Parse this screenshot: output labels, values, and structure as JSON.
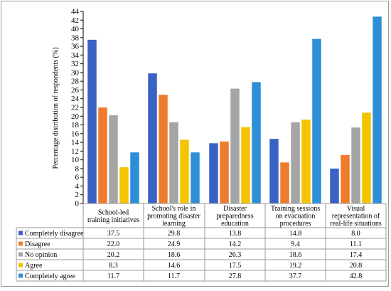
{
  "chart_data": {
    "type": "bar",
    "title": "",
    "ylabel": "Percentage distribution of respondents (%)",
    "xlabel": "",
    "ylim": [
      0,
      44
    ],
    "y_ticks": [
      0,
      2,
      4,
      6,
      8,
      10,
      12,
      14,
      16,
      18,
      20,
      22,
      24,
      26,
      28,
      30,
      32,
      34,
      36,
      38,
      40,
      42,
      44
    ],
    "grid": false,
    "legend_placement": "data-table-below",
    "categories": [
      [
        "School-led",
        "training initiatives"
      ],
      [
        "School's role in",
        "promoting disaster",
        "learning"
      ],
      [
        "Disaster",
        "preparedness",
        "education"
      ],
      [
        "Training sessions",
        "on evacuation",
        "procedures"
      ],
      [
        "Visual",
        "representation of",
        "real-life situations"
      ]
    ],
    "series": [
      {
        "name": "Completely disagree",
        "color": "#3a62c4",
        "values": [
          37.5,
          29.8,
          13.8,
          14.8,
          8.0
        ],
        "labels": [
          "37.5",
          "29.8",
          "13.8",
          "14.8",
          "8.0"
        ]
      },
      {
        "name": "Disagree",
        "color": "#ef7c2e",
        "values": [
          22.0,
          24.9,
          14.2,
          9.4,
          11.1
        ],
        "labels": [
          "22.0",
          "24.9",
          "14.2",
          "9.4",
          "11.1"
        ]
      },
      {
        "name": "No opinion",
        "color": "#a5a5a5",
        "values": [
          20.2,
          18.6,
          26.3,
          18.6,
          17.4
        ],
        "labels": [
          "20.2",
          "18.6",
          "26.3",
          "18.6",
          "17.4"
        ]
      },
      {
        "name": "Agree",
        "color": "#f5c400",
        "values": [
          8.3,
          14.6,
          17.5,
          19.2,
          20.8
        ],
        "labels": [
          "8.3",
          "14.6",
          "17.5",
          "19.2",
          "20.8"
        ]
      },
      {
        "name": "Completely agree",
        "color": "#2e8fd6",
        "values": [
          11.7,
          11.7,
          27.8,
          37.7,
          42.8
        ],
        "labels": [
          "11.7",
          "11.7",
          "27.8",
          "37.7",
          "42.8"
        ]
      }
    ]
  }
}
